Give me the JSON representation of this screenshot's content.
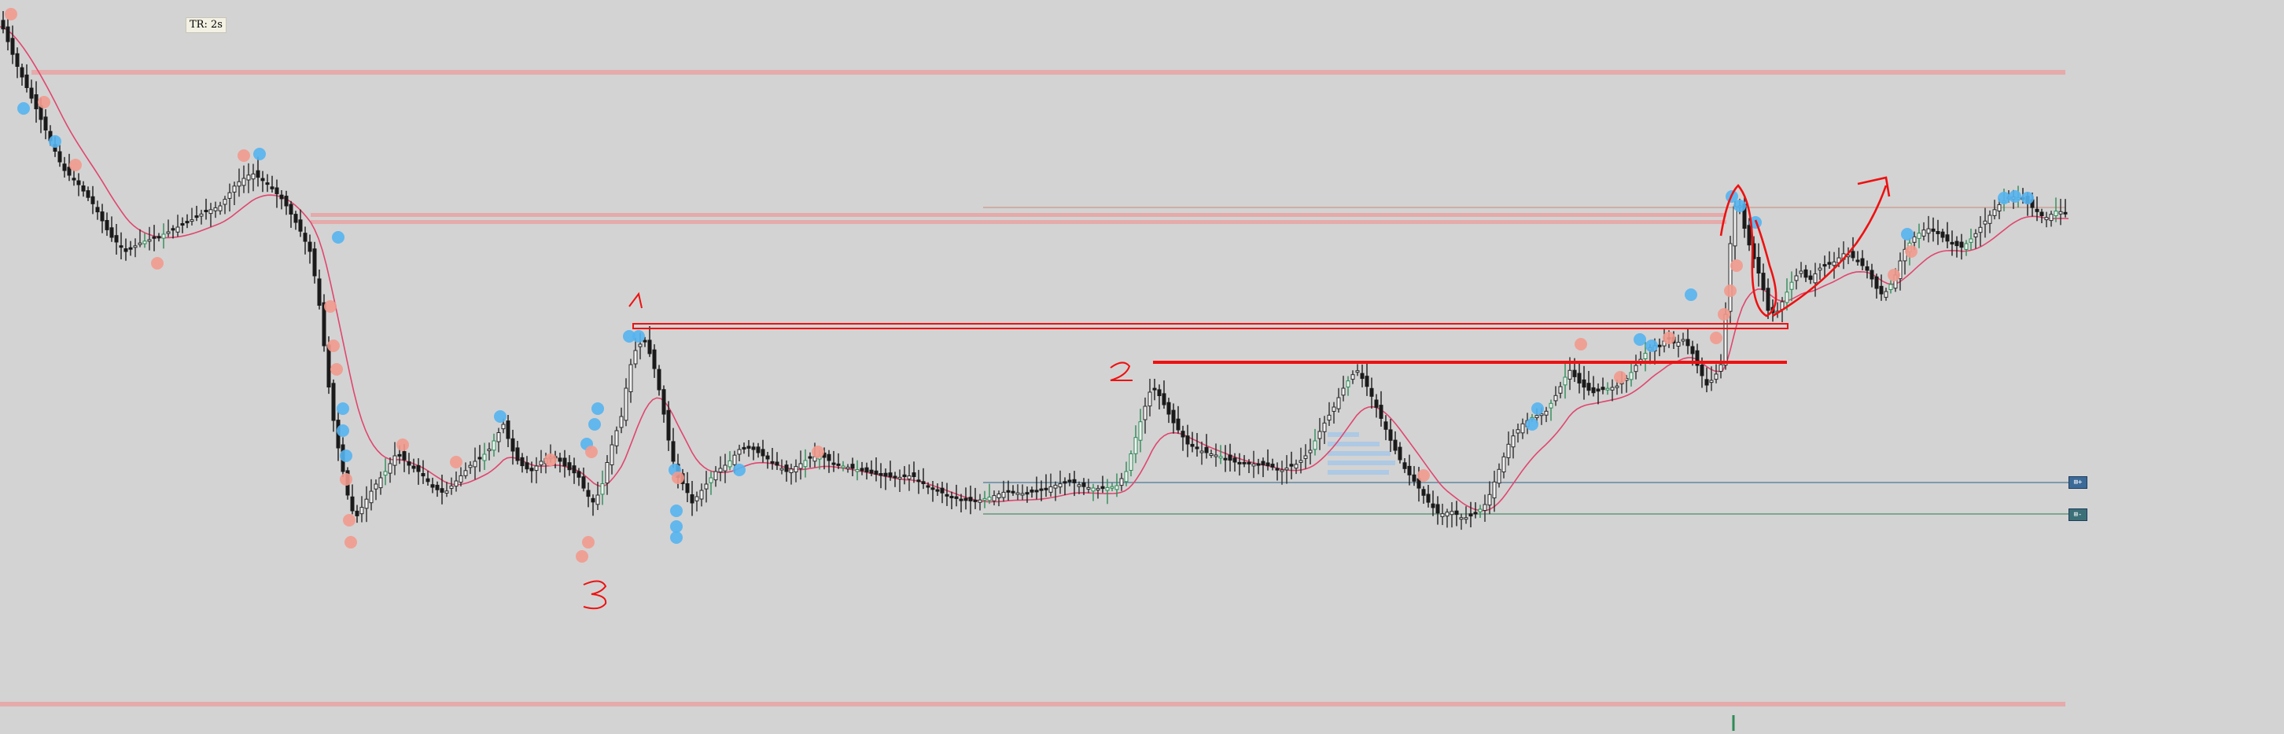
{
  "badge": {
    "text": "TR: 2s"
  },
  "tags": {
    "upper": "⊞+",
    "lower": "⊞-"
  },
  "colors": {
    "background": "#d3d3d3",
    "bull_candle": "#2e8b57",
    "bear_candle": "#1a1a1a",
    "moving_average": "#e0466e",
    "marker_blue": "#55b4f0",
    "marker_red": "#f29a8e",
    "zone_band": "#e8a2a2",
    "annotation": "#ee1111",
    "guide_blue": "#4a7796",
    "guide_green": "#4f8a6c",
    "volume_profile": "#a8c8e6"
  },
  "chart_data": {
    "type": "candlestick",
    "title": "",
    "xlabel": "",
    "ylabel": "",
    "grid": false,
    "legend": "none",
    "series": [
      {
        "close_path": [
          [
            0,
            26
          ],
          [
            20,
            80
          ],
          [
            40,
            125
          ],
          [
            60,
            170
          ],
          [
            80,
            215
          ],
          [
            100,
            235
          ],
          [
            120,
            262
          ],
          [
            140,
            300
          ],
          [
            160,
            320
          ],
          [
            180,
            308
          ],
          [
            200,
            302
          ],
          [
            220,
            292
          ],
          [
            240,
            282
          ],
          [
            260,
            270
          ],
          [
            280,
            262
          ],
          [
            300,
            234
          ],
          [
            320,
            220
          ],
          [
            340,
            234
          ],
          [
            360,
            255
          ],
          [
            380,
            290
          ],
          [
            395,
            322
          ],
          [
            405,
            380
          ],
          [
            412,
            440
          ],
          [
            420,
            510
          ],
          [
            428,
            560
          ],
          [
            436,
            600
          ],
          [
            444,
            640
          ],
          [
            452,
            660
          ],
          [
            462,
            642
          ],
          [
            475,
            620
          ],
          [
            490,
            600
          ],
          [
            505,
            575
          ],
          [
            520,
            592
          ],
          [
            535,
            602
          ],
          [
            550,
            620
          ],
          [
            565,
            628
          ],
          [
            580,
            612
          ],
          [
            600,
            590
          ],
          [
            620,
            575
          ],
          [
            640,
            540
          ],
          [
            650,
            570
          ],
          [
            660,
            590
          ],
          [
            675,
            600
          ],
          [
            690,
            585
          ],
          [
            705,
            580
          ],
          [
            720,
            595
          ],
          [
            735,
            605
          ],
          [
            745,
            628
          ],
          [
            755,
            640
          ],
          [
            765,
            620
          ],
          [
            775,
            575
          ],
          [
            790,
            530
          ],
          [
            800,
            470
          ],
          [
            810,
            440
          ],
          [
            820,
            435
          ],
          [
            830,
            460
          ],
          [
            840,
            505
          ],
          [
            850,
            560
          ],
          [
            860,
            605
          ],
          [
            870,
            618
          ],
          [
            880,
            640
          ],
          [
            895,
            620
          ],
          [
            910,
            600
          ],
          [
            925,
            590
          ],
          [
            940,
            572
          ],
          [
            955,
            570
          ],
          [
            970,
            580
          ],
          [
            985,
            590
          ],
          [
            1000,
            600
          ],
          [
            1015,
            592
          ],
          [
            1030,
            582
          ],
          [
            1045,
            580
          ],
          [
            1060,
            590
          ],
          [
            1080,
            595
          ],
          [
            1100,
            600
          ],
          [
            1120,
            605
          ],
          [
            1140,
            608
          ],
          [
            1160,
            605
          ],
          [
            1180,
            620
          ],
          [
            1200,
            628
          ],
          [
            1220,
            636
          ],
          [
            1240,
            638
          ],
          [
            1260,
            632
          ],
          [
            1280,
            625
          ],
          [
            1300,
            628
          ],
          [
            1320,
            625
          ],
          [
            1340,
            618
          ],
          [
            1360,
            612
          ],
          [
            1380,
            620
          ],
          [
            1400,
            622
          ],
          [
            1420,
            618
          ],
          [
            1432,
            600
          ],
          [
            1440,
            570
          ],
          [
            1455,
            520
          ],
          [
            1465,
            490
          ],
          [
            1475,
            505
          ],
          [
            1490,
            535
          ],
          [
            1510,
            565
          ],
          [
            1530,
            575
          ],
          [
            1550,
            580
          ],
          [
            1570,
            588
          ],
          [
            1590,
            590
          ],
          [
            1610,
            592
          ],
          [
            1630,
            598
          ],
          [
            1650,
            590
          ],
          [
            1665,
            575
          ],
          [
            1680,
            545
          ],
          [
            1695,
            520
          ],
          [
            1710,
            490
          ],
          [
            1725,
            470
          ],
          [
            1740,
            495
          ],
          [
            1755,
            530
          ],
          [
            1770,
            565
          ],
          [
            1785,
            595
          ],
          [
            1800,
            615
          ],
          [
            1815,
            638
          ],
          [
            1830,
            655
          ],
          [
            1845,
            650
          ],
          [
            1860,
            660
          ],
          [
            1875,
            655
          ],
          [
            1890,
            640
          ],
          [
            1905,
            600
          ],
          [
            1920,
            560
          ],
          [
            1935,
            540
          ],
          [
            1950,
            530
          ],
          [
            1965,
            525
          ],
          [
            1980,
            500
          ],
          [
            1995,
            470
          ],
          [
            2010,
            490
          ],
          [
            2025,
            500
          ],
          [
            2040,
            495
          ],
          [
            2055,
            492
          ],
          [
            2070,
            480
          ],
          [
            2080,
            465
          ],
          [
            2090,
            452
          ],
          [
            2100,
            440
          ],
          [
            2110,
            440
          ],
          [
            2120,
            430
          ],
          [
            2130,
            438
          ],
          [
            2140,
            432
          ],
          [
            2150,
            445
          ],
          [
            2160,
            470
          ],
          [
            2170,
            490
          ],
          [
            2180,
            480
          ],
          [
            2190,
            460
          ],
          [
            2200,
            310
          ],
          [
            2207,
            255
          ],
          [
            2212,
            262
          ],
          [
            2220,
            300
          ],
          [
            2232,
            335
          ],
          [
            2240,
            360
          ],
          [
            2248,
            395
          ],
          [
            2258,
            400
          ],
          [
            2268,
            380
          ],
          [
            2280,
            355
          ],
          [
            2290,
            345
          ],
          [
            2300,
            358
          ],
          [
            2315,
            340
          ],
          [
            2330,
            335
          ],
          [
            2345,
            322
          ],
          [
            2360,
            330
          ],
          [
            2375,
            345
          ],
          [
            2390,
            375
          ],
          [
            2400,
            370
          ],
          [
            2410,
            350
          ],
          [
            2420,
            320
          ],
          [
            2435,
            300
          ],
          [
            2450,
            290
          ],
          [
            2465,
            298
          ],
          [
            2480,
            310
          ],
          [
            2495,
            315
          ],
          [
            2510,
            300
          ],
          [
            2525,
            280
          ],
          [
            2540,
            262
          ],
          [
            2555,
            250
          ],
          [
            2570,
            252
          ],
          [
            2585,
            265
          ],
          [
            2600,
            278
          ],
          [
            2615,
            268
          ],
          [
            2630,
            272
          ]
        ]
      }
    ],
    "horizontal_levels": [
      {
        "role": "zone",
        "y1": 92
      },
      {
        "role": "zone",
        "y1": 270,
        "y2": 288
      },
      {
        "role": "zone",
        "y1": 892
      },
      {
        "role": "thin",
        "y1": 264,
        "x_from": 1250
      }
    ]
  }
}
